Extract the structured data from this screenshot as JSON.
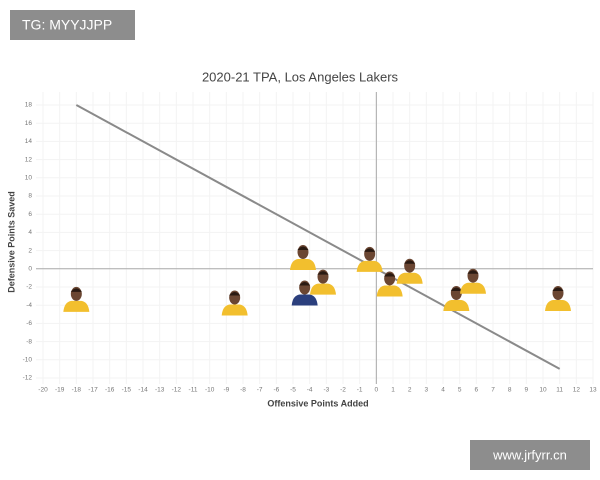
{
  "chart_data": {
    "type": "scatter",
    "title": "2020-21 TPA, Los Angeles Lakers",
    "x_label": "Offensive Points Added",
    "y_label": "Defensive Points Saved",
    "x": [
      -18,
      -8.5,
      -4.4,
      -4.3,
      -3.2,
      -0.4,
      0.8,
      2,
      4.8,
      5.8,
      10.9
    ],
    "y": [
      -3.2,
      -3.6,
      1.4,
      -2.5,
      -1.3,
      1.2,
      -1.5,
      -0.1,
      -3.1,
      -1.2,
      -3.1
    ],
    "colors": [
      "#f2bf2e",
      "#f2bf2e",
      "#f2bf2e",
      "#2b3f7d",
      "#f2bf2e",
      "#f2bf2e",
      "#f2bf2e",
      "#f2bf2e",
      "#f2bf2e",
      "#f2bf2e",
      "#f2bf2e"
    ],
    "reference_line": {
      "x": [
        -18,
        11
      ],
      "y": [
        18,
        -11
      ],
      "color": "#8a8a8a"
    },
    "xlim": [
      -20,
      13
    ],
    "ylim": [
      -12,
      18
    ],
    "xticks": [
      -20,
      -19,
      -18,
      -17,
      -16,
      -15,
      -14,
      -13,
      -12,
      -11,
      -10,
      -9,
      -8,
      -7,
      -6,
      -5,
      -4,
      -3,
      -2,
      -1,
      0,
      1,
      2,
      3,
      4,
      5,
      6,
      7,
      8,
      9,
      10,
      11,
      12,
      13
    ],
    "yticks": [
      18,
      16,
      14,
      12,
      10,
      8,
      6,
      4,
      2,
      0,
      -2,
      -4,
      -6,
      -8,
      -10,
      -12
    ],
    "grid": true
  },
  "watermarks": [
    "TG: MYYJJPP",
    "www.jrfyrr.cn"
  ]
}
